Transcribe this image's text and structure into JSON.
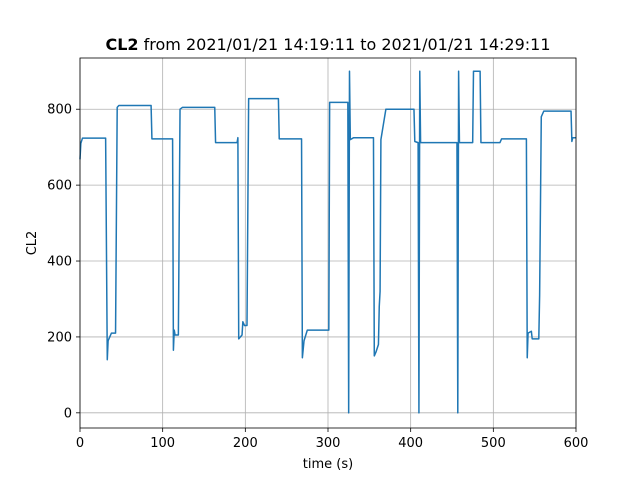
{
  "chart_data": {
    "type": "line",
    "title": {
      "bold": "CL2",
      "rest": " from 2021/01/21 14:19:11 to 2021/01/21 14:29:11"
    },
    "xlabel": "time (s)",
    "ylabel": "CL2",
    "xlim": [
      0,
      600
    ],
    "ylim": [
      -40,
      935
    ],
    "xticks": [
      0,
      100,
      200,
      300,
      400,
      500,
      600
    ],
    "yticks": [
      0,
      200,
      400,
      600,
      800
    ],
    "grid": true,
    "series_color": "#1f77b4",
    "series": [
      {
        "points": [
          [
            0,
            668
          ],
          [
            1,
            710
          ],
          [
            3,
            724
          ],
          [
            31,
            724
          ],
          [
            33,
            140
          ],
          [
            34,
            190
          ],
          [
            36,
            200
          ],
          [
            38,
            210
          ],
          [
            43,
            210
          ],
          [
            45,
            805
          ],
          [
            47,
            810
          ],
          [
            86,
            810
          ],
          [
            87,
            722
          ],
          [
            112,
            722
          ],
          [
            113,
            165
          ],
          [
            114,
            218
          ],
          [
            115,
            205
          ],
          [
            119,
            205
          ],
          [
            121,
            800
          ],
          [
            124,
            805
          ],
          [
            163,
            805
          ],
          [
            164,
            712
          ],
          [
            190,
            712
          ],
          [
            191,
            725
          ],
          [
            192,
            195
          ],
          [
            196,
            205
          ],
          [
            197,
            240
          ],
          [
            199,
            230
          ],
          [
            202,
            230
          ],
          [
            204,
            828
          ],
          [
            240,
            828
          ],
          [
            241,
            722
          ],
          [
            268,
            722
          ],
          [
            269,
            145
          ],
          [
            271,
            190
          ],
          [
            275,
            218
          ],
          [
            301,
            218
          ],
          [
            302,
            818
          ],
          [
            324,
            818
          ],
          [
            325,
            0
          ],
          [
            326,
            900
          ],
          [
            327,
            720
          ],
          [
            331,
            725
          ],
          [
            355,
            725
          ],
          [
            356,
            150
          ],
          [
            358,
            160
          ],
          [
            361,
            180
          ],
          [
            362,
            280
          ],
          [
            363,
            320
          ],
          [
            364,
            720
          ],
          [
            367,
            760
          ],
          [
            370,
            800
          ],
          [
            404,
            800
          ],
          [
            405,
            715
          ],
          [
            409,
            712
          ],
          [
            410,
            0
          ],
          [
            411,
            900
          ],
          [
            412,
            712
          ],
          [
            456,
            712
          ],
          [
            457,
            0
          ],
          [
            458,
            900
          ],
          [
            459,
            712
          ],
          [
            475,
            712
          ],
          [
            476,
            900
          ],
          [
            484,
            900
          ],
          [
            485,
            712
          ],
          [
            508,
            712
          ],
          [
            510,
            722
          ],
          [
            540,
            722
          ],
          [
            541,
            145
          ],
          [
            542,
            210
          ],
          [
            546,
            215
          ],
          [
            547,
            195
          ],
          [
            555,
            195
          ],
          [
            556,
            310
          ],
          [
            558,
            780
          ],
          [
            561,
            795
          ],
          [
            594,
            795
          ],
          [
            595,
            715
          ],
          [
            596,
            725
          ],
          [
            600,
            725
          ]
        ]
      }
    ]
  }
}
